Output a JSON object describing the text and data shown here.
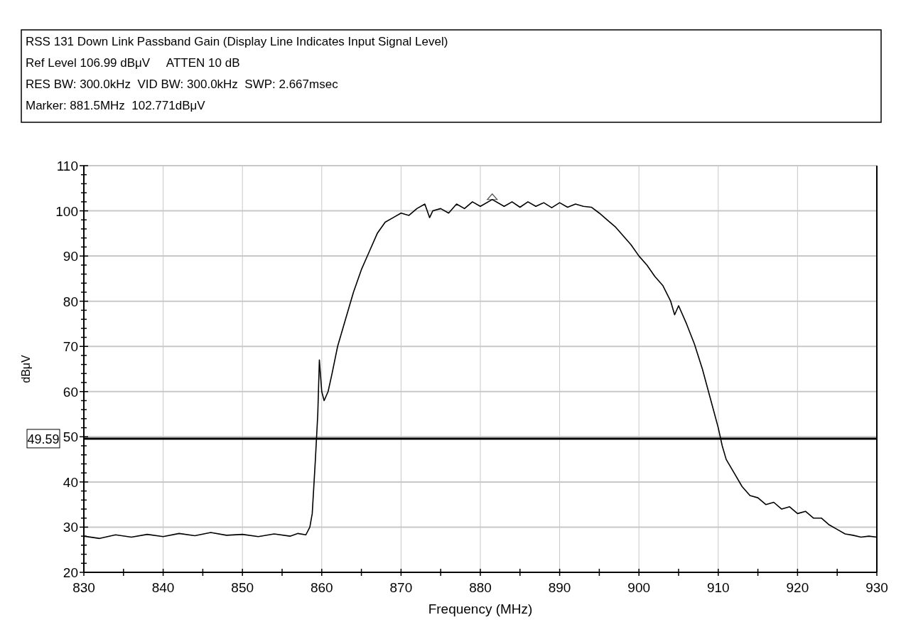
{
  "chart_data": {
    "type": "line",
    "title": "RSS 131 Down Link Passband Gain (Display Line Indicates Input Signal Level)",
    "annotations": [
      "Ref Level 106.99 dBμV     ATTEN 10 dB",
      "RES BW: 300.0kHz  VID BW: 300.0kHz  SWP: 2.667msec",
      "Marker: 881.5MHz  102.771dBμV"
    ],
    "xlabel": "Frequency (MHz)",
    "ylabel": "dBμV",
    "xlim": [
      830,
      930
    ],
    "ylim": [
      20,
      110
    ],
    "xticks": [
      830,
      {
        "value": 835,
        "label": null
      },
      840,
      {
        "value": 845,
        "label": null
      },
      850,
      {
        "value": 855,
        "label": null
      },
      860,
      {
        "value": 865,
        "label": null
      },
      870,
      {
        "value": 875,
        "label": null
      },
      880,
      {
        "value": 885,
        "label": null
      },
      890,
      {
        "value": 895,
        "label": null
      },
      900,
      {
        "value": 905,
        "label": null
      },
      910,
      {
        "value": 915,
        "label": null
      },
      920,
      {
        "value": 925,
        "label": null
      },
      930
    ],
    "yticks": [
      20,
      {
        "value": 22,
        "label": null
      },
      {
        "value": 24,
        "label": null
      },
      {
        "value": 26,
        "label": null
      },
      {
        "value": 28,
        "label": null
      },
      30,
      {
        "value": 32,
        "label": null
      },
      {
        "value": 34,
        "label": null
      },
      {
        "value": 36,
        "label": null
      },
      {
        "value": 38,
        "label": null
      },
      40,
      {
        "value": 42,
        "label": null
      },
      {
        "value": 44,
        "label": null
      },
      {
        "value": 46,
        "label": null
      },
      {
        "value": 48,
        "label": null
      },
      50,
      {
        "value": 52,
        "label": null
      },
      {
        "value": 54,
        "label": null
      },
      {
        "value": 56,
        "label": null
      },
      {
        "value": 58,
        "label": null
      },
      60,
      {
        "value": 62,
        "label": null
      },
      {
        "value": 64,
        "label": null
      },
      {
        "value": 66,
        "label": null
      },
      {
        "value": 68,
        "label": null
      },
      70,
      {
        "value": 72,
        "label": null
      },
      {
        "value": 74,
        "label": null
      },
      {
        "value": 76,
        "label": null
      },
      {
        "value": 78,
        "label": null
      },
      80,
      {
        "value": 82,
        "label": null
      },
      {
        "value": 84,
        "label": null
      },
      {
        "value": 86,
        "label": null
      },
      {
        "value": 88,
        "label": null
      },
      90,
      {
        "value": 92,
        "label": null
      },
      {
        "value": 94,
        "label": null
      },
      {
        "value": 96,
        "label": null
      },
      {
        "value": 98,
        "label": null
      },
      100,
      {
        "value": 102,
        "label": null
      },
      {
        "value": 104,
        "label": null
      },
      {
        "value": 106,
        "label": null
      },
      {
        "value": 108,
        "label": null
      },
      110
    ],
    "grid": true,
    "marker": "none",
    "line_style": "solid",
    "ref_lines": [
      {
        "axis": "y",
        "value": 49.59,
        "label": "49.59",
        "color": "#000000"
      }
    ],
    "series": [
      {
        "type": "scatter",
        "color": "#555555",
        "marker": "triangle",
        "x": [
          881.5
        ],
        "values": [
          102.8
        ]
      },
      {
        "color": "#000000",
        "x": [
          830,
          832,
          834,
          836,
          838,
          840,
          842,
          844,
          846,
          848,
          850,
          852,
          854,
          856,
          857,
          858,
          858.5,
          858.8,
          859.2,
          859.5,
          859.7,
          860,
          860.3,
          860.8,
          861.3,
          862,
          863,
          864,
          865,
          866,
          867,
          868,
          869,
          870,
          871,
          872,
          873,
          873.6,
          874,
          875,
          876,
          877,
          878,
          879,
          880,
          881.5,
          883,
          884,
          885,
          886,
          887,
          888,
          889,
          890,
          891,
          892,
          893,
          894,
          895,
          896,
          897,
          898,
          899,
          900,
          901,
          902,
          903,
          904,
          904.5,
          905,
          906,
          907,
          908,
          909,
          910,
          910.5,
          911,
          912,
          913,
          914,
          915,
          916,
          917,
          918,
          919,
          920,
          921,
          922,
          923,
          924,
          925,
          926,
          927,
          928,
          929,
          930
        ],
        "values": [
          28,
          27.5,
          28.3,
          27.8,
          28.4,
          27.9,
          28.6,
          28.1,
          28.8,
          28.2,
          28.4,
          27.9,
          28.5,
          28,
          28.6,
          28.3,
          30,
          33,
          45,
          55,
          67,
          60,
          58,
          60,
          64,
          70,
          76,
          82,
          87,
          91,
          95,
          97.5,
          98.5,
          99.5,
          99,
          100.5,
          101.5,
          98.5,
          100,
          100.5,
          99.5,
          101.5,
          100.5,
          102,
          101,
          102.5,
          101,
          102,
          100.8,
          102,
          101,
          101.8,
          100.7,
          101.8,
          100.8,
          101.5,
          101,
          100.8,
          99.5,
          98,
          96.5,
          94.5,
          92.5,
          90,
          88,
          85.5,
          83.5,
          80,
          77,
          79,
          75,
          70.5,
          65,
          58.5,
          52,
          48,
          45,
          42,
          39,
          37,
          36.5,
          35,
          35.5,
          34,
          34.5,
          33,
          33.5,
          32,
          32,
          30.5,
          29.5,
          28.5,
          28.2,
          27.8,
          28,
          27.8
        ]
      }
    ]
  }
}
